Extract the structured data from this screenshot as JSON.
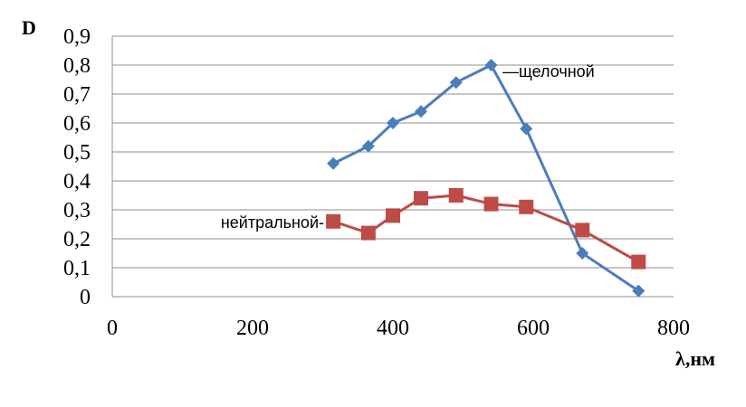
{
  "chart_data": {
    "type": "line",
    "title": "",
    "ylabel": "D",
    "xlabel": "λ,нм",
    "xlim": [
      0,
      800
    ],
    "ylim": [
      0,
      0.9
    ],
    "xticks": [
      0,
      200,
      400,
      600,
      800
    ],
    "xtick_labels": [
      "0",
      "200",
      "400",
      "600",
      "800"
    ],
    "yticks": [
      0,
      0.1,
      0.2,
      0.3,
      0.4,
      0.5,
      0.6,
      0.7,
      0.8,
      0.9
    ],
    "ytick_labels": [
      "0",
      "0,1",
      "0,2",
      "0,3",
      "0,4",
      "0,5",
      "0,6",
      "0,7",
      "0,8",
      "0,9"
    ],
    "grid": "horizontal",
    "legend": "inline labels",
    "series": [
      {
        "name": "щелочной",
        "label_text": "—щелочной",
        "color": "#4a7ebb",
        "marker": "diamond",
        "x": [
          315,
          365,
          400,
          440,
          490,
          540,
          590,
          670,
          750
        ],
        "y": [
          0.46,
          0.52,
          0.6,
          0.64,
          0.74,
          0.8,
          0.58,
          0.15,
          0.02
        ]
      },
      {
        "name": "нейтральной",
        "label_text": "нейтральной-",
        "color": "#be4b48",
        "marker": "square",
        "x": [
          315,
          365,
          400,
          440,
          490,
          540,
          590,
          670,
          750
        ],
        "y": [
          0.26,
          0.22,
          0.28,
          0.34,
          0.35,
          0.32,
          0.31,
          0.23,
          0.12
        ]
      }
    ]
  }
}
